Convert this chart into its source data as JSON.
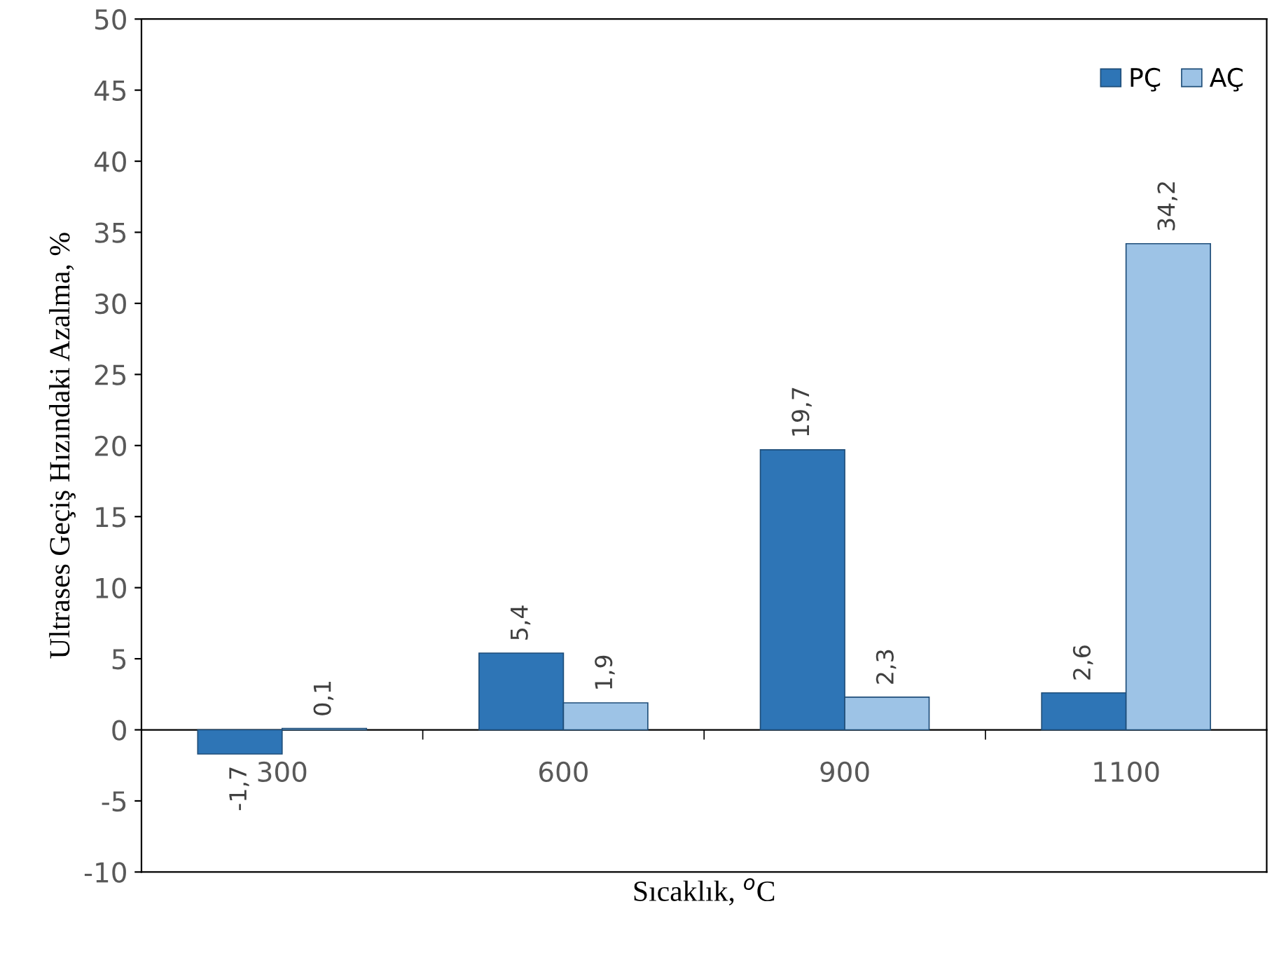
{
  "chart_data": {
    "type": "bar",
    "xlabel": "Sıcaklık, $^{o}$C",
    "ylabel": "Ultrases Geçiş Hızındaki Azalma, %",
    "categories": [
      "300",
      "600",
      "900",
      "1100"
    ],
    "series": [
      {
        "name": "PÇ",
        "color": "#2e75b6",
        "values": [
          -1.7,
          5.4,
          19.7,
          2.6
        ],
        "value_labels": [
          "-1,7",
          "5,4",
          "19,7",
          "2,6"
        ]
      },
      {
        "name": "AÇ",
        "color": "#9dc3e6",
        "values": [
          0.1,
          1.9,
          2.3,
          34.2
        ],
        "value_labels": [
          "0,1",
          "1,9",
          "2,3",
          "34,2"
        ]
      }
    ],
    "ylim": [
      -10,
      50
    ],
    "yticks": [
      -10,
      -5,
      0,
      5,
      10,
      15,
      20,
      25,
      30,
      35,
      40,
      45,
      50
    ],
    "legend": "top right"
  }
}
